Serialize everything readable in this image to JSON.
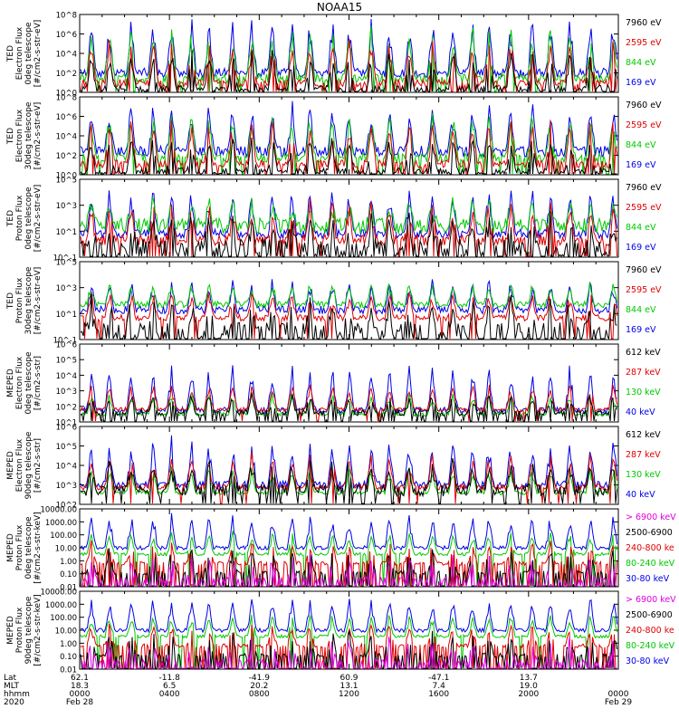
{
  "chart_data": {
    "type": "line",
    "title": "NOAA15",
    "panels": [
      {
        "ylabel": [
          "TED",
          "Electron Flux",
          "0deg telescope",
          "[#/cm2-s-str-eV]"
        ],
        "yticks": [
          "10^0",
          "10^2",
          "10^4",
          "10^6",
          "10^8"
        ],
        "legend": [
          {
            "label": "7960 eV",
            "color": "#000000"
          },
          {
            "label": "2595 eV",
            "color": "#e00000"
          },
          {
            "label": "844 eV",
            "color": "#00c800"
          },
          {
            "label": "169 eV",
            "color": "#0000e6"
          }
        ]
      },
      {
        "ylabel": [
          "TED",
          "Electron Flux",
          "30deg telescope",
          "[#/cm2-s-str-eV]"
        ],
        "yticks": [
          "10^0",
          "10^2",
          "10^4",
          "10^6",
          "10^8"
        ],
        "legend": [
          {
            "label": "7960 eV",
            "color": "#000000"
          },
          {
            "label": "2595 eV",
            "color": "#e00000"
          },
          {
            "label": "844 eV",
            "color": "#00c800"
          },
          {
            "label": "169 eV",
            "color": "#0000e6"
          }
        ]
      },
      {
        "ylabel": [
          "TED",
          "Proton Flux",
          "0deg telescope",
          "[#/cm2-s-str-eV]"
        ],
        "yticks": [
          "10^-1",
          "10^1",
          "10^3",
          "10^5"
        ],
        "legend": [
          {
            "label": "7960 eV",
            "color": "#000000"
          },
          {
            "label": "2595 eV",
            "color": "#e00000"
          },
          {
            "label": "844 eV",
            "color": "#00c800"
          },
          {
            "label": "169 eV",
            "color": "#0000e6"
          }
        ]
      },
      {
        "ylabel": [
          "TED",
          "Proton Flux",
          "30deg telescope",
          "[#/cm2-s-str-eV]"
        ],
        "yticks": [
          "10^-1",
          "10^1",
          "10^3",
          "10^5"
        ],
        "legend": [
          {
            "label": "7960 eV",
            "color": "#000000"
          },
          {
            "label": "2595 eV",
            "color": "#e00000"
          },
          {
            "label": "844 eV",
            "color": "#00c800"
          },
          {
            "label": "169 eV",
            "color": "#0000e6"
          }
        ]
      },
      {
        "ylabel": [
          "MEPED",
          "Electron Flux",
          "0deg telescope",
          "[#/cm2-s-str]"
        ],
        "yticks": [
          "10^1",
          "10^2",
          "10^3",
          "10^4",
          "10^5",
          "10^6"
        ],
        "legend": [
          {
            "label": "612 keV",
            "color": "#000000"
          },
          {
            "label": "287 keV",
            "color": "#e00000"
          },
          {
            "label": "130 keV",
            "color": "#00c800"
          },
          {
            "label": "40 keV",
            "color": "#0000e6"
          }
        ]
      },
      {
        "ylabel": [
          "MEPED",
          "Electron Flux",
          "90deg telescope",
          "[#/cm2-s-str]"
        ],
        "yticks": [
          "10^2",
          "10^3",
          "10^4",
          "10^5",
          "10^6"
        ],
        "legend": [
          {
            "label": "612 keV",
            "color": "#000000"
          },
          {
            "label": "287 keV",
            "color": "#e00000"
          },
          {
            "label": "130 keV",
            "color": "#00c800"
          },
          {
            "label": "40 keV",
            "color": "#0000e6"
          }
        ]
      },
      {
        "ylabel": [
          "MEPED",
          "Proton Flux",
          "0deg telescope",
          "[#/cm2-s-str-keV]"
        ],
        "yticks": [
          "0.01",
          "0.10",
          "1.00",
          "10.00",
          "100.00",
          "1000.00",
          "10000.00"
        ],
        "legend": [
          {
            "label": "> 6900 keV",
            "color": "#e000e0"
          },
          {
            "label": "2500-6900",
            "color": "#000000"
          },
          {
            "label": "240-800 ke",
            "color": "#e00000"
          },
          {
            "label": "80-240 keV",
            "color": "#00c800"
          },
          {
            "label": "30-80 keV",
            "color": "#0000e6"
          }
        ]
      },
      {
        "ylabel": [
          "MEPED",
          "Proton Flux",
          "90deg telescope",
          "[#/cm2-s-str-keV]"
        ],
        "yticks": [
          "0.01",
          "0.10",
          "1.00",
          "10.00",
          "100.00",
          "1000.00",
          "10000.00"
        ],
        "legend": [
          {
            "label": "> 6900 keV",
            "color": "#e000e0"
          },
          {
            "label": "2500-6900",
            "color": "#000000"
          },
          {
            "label": "240-800 ke",
            "color": "#e00000"
          },
          {
            "label": "80-240 keV",
            "color": "#00c800"
          },
          {
            "label": "30-80 keV",
            "color": "#0000e6"
          }
        ]
      }
    ],
    "x_axis": {
      "row_labels": [
        "Lat",
        "MLT",
        "hhmm",
        "2020"
      ],
      "lat": [
        "62.1",
        "-11.8",
        "-41.9",
        "60.9",
        "-47.1",
        "13.7"
      ],
      "mlt": [
        "18.3",
        "6.5",
        "20.2",
        "13.1",
        "7.4",
        "19.0"
      ],
      "hhmm": [
        "0000",
        "0400",
        "0800",
        "1200",
        "1600",
        "2000",
        "0000"
      ],
      "date_start": "Feb 28",
      "date_end": "Feb 29"
    }
  }
}
